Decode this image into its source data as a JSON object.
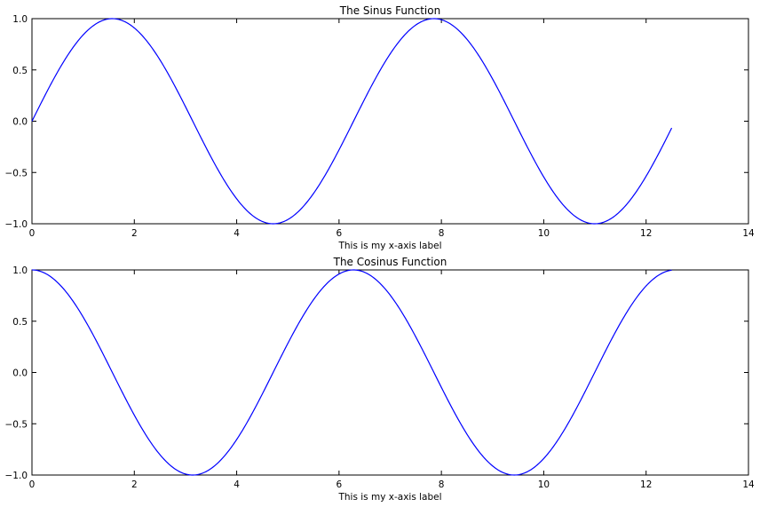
{
  "chart_data": [
    {
      "type": "line",
      "title": "The Sinus Function",
      "xlabel": "This is my x-axis label",
      "ylabel": "",
      "xlim": [
        0,
        14
      ],
      "ylim": [
        -1.0,
        1.0
      ],
      "x_ticks": [
        "0",
        "2",
        "4",
        "6",
        "8",
        "10",
        "12",
        "14"
      ],
      "y_ticks": [
        "1.0",
        "0.5",
        "0.0",
        "−0.5",
        "−1.0"
      ],
      "grid": false,
      "series": [
        {
          "color": "#0000ff",
          "function": "sin",
          "x_range": [
            0,
            12.5
          ],
          "x": [
            0,
            0.5,
            1,
            1.5708,
            2,
            2.5,
            3,
            3.5,
            4,
            4.5,
            4.7124,
            5,
            5.5,
            6,
            6.5,
            7,
            7.5,
            7.854,
            8,
            8.5,
            9,
            9.5,
            10,
            10.5,
            10.9956,
            11.5,
            12,
            12.5
          ],
          "y": [
            0,
            0.479,
            0.841,
            1.0,
            0.909,
            0.598,
            0.141,
            -0.351,
            -0.757,
            -0.978,
            -1.0,
            -0.959,
            -0.706,
            -0.279,
            0.215,
            0.657,
            0.938,
            1.0,
            0.989,
            0.798,
            0.412,
            -0.075,
            -0.544,
            -0.88,
            -1.0,
            -0.875,
            -0.537,
            -0.066
          ]
        }
      ]
    },
    {
      "type": "line",
      "title": "The Cosinus Function",
      "xlabel": "This is my x-axis label",
      "ylabel": "",
      "xlim": [
        0,
        14
      ],
      "ylim": [
        -1.0,
        1.0
      ],
      "x_ticks": [
        "0",
        "2",
        "4",
        "6",
        "8",
        "10",
        "12",
        "14"
      ],
      "y_ticks": [
        "1.0",
        "0.5",
        "0.0",
        "−0.5",
        "−1.0"
      ],
      "grid": false,
      "series": [
        {
          "color": "#0000ff",
          "function": "cos",
          "x_range": [
            0,
            12.5
          ],
          "x": [
            0,
            0.5,
            1,
            1.5,
            2,
            2.5,
            3,
            3.1416,
            3.5,
            4,
            4.5,
            5,
            5.5,
            6,
            6.2832,
            6.5,
            7,
            7.5,
            8,
            8.5,
            9,
            9.4248,
            10,
            10.5,
            11,
            11.5,
            12,
            12.5
          ],
          "y": [
            1.0,
            0.878,
            0.54,
            0.071,
            -0.416,
            -0.801,
            -0.99,
            -1.0,
            -0.936,
            -0.654,
            -0.211,
            0.284,
            0.709,
            0.96,
            1.0,
            0.977,
            0.754,
            0.347,
            -0.146,
            -0.602,
            -0.911,
            -1.0,
            -0.839,
            -0.476,
            0.004,
            0.484,
            0.844,
            0.998
          ]
        }
      ]
    }
  ]
}
